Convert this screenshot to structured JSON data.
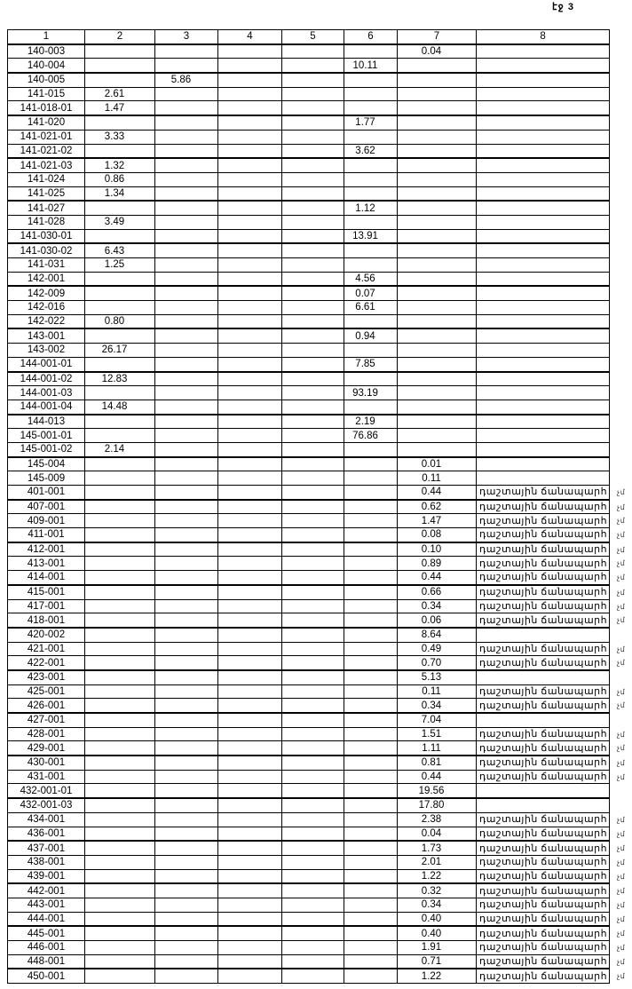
{
  "page_label": "էջ 3",
  "table": {
    "headers": [
      "1",
      "2",
      "3",
      "4",
      "5",
      "6",
      "7",
      "8"
    ],
    "road_label": "դաշտային ճանապարհ",
    "side_mark": "չմ",
    "rows": [
      [
        "140-003",
        "",
        "",
        "",
        "",
        "",
        "0.04",
        ""
      ],
      [
        "140-004",
        "",
        "",
        "",
        "",
        "10.11",
        "",
        ""
      ],
      [
        "140-005",
        "",
        "5.86",
        "",
        "",
        "",
        "",
        ""
      ],
      [
        "141-015",
        "2.61",
        "",
        "",
        "",
        "",
        "",
        ""
      ],
      [
        "141-018-01",
        "1.47",
        "",
        "",
        "",
        "",
        "",
        ""
      ],
      [
        "141-020",
        "",
        "",
        "",
        "",
        "1.77",
        "",
        ""
      ],
      [
        "141-021-01",
        "3.33",
        "",
        "",
        "",
        "",
        "",
        ""
      ],
      [
        "141-021-02",
        "",
        "",
        "",
        "",
        "3.62",
        "",
        ""
      ],
      [
        "141-021-03",
        "1.32",
        "",
        "",
        "",
        "",
        "",
        ""
      ],
      [
        "141-024",
        "0.86",
        "",
        "",
        "",
        "",
        "",
        ""
      ],
      [
        "141-025",
        "1.34",
        "",
        "",
        "",
        "",
        "",
        ""
      ],
      [
        "141-027",
        "",
        "",
        "",
        "",
        "1.12",
        "",
        ""
      ],
      [
        "141-028",
        "3.49",
        "",
        "",
        "",
        "",
        "",
        ""
      ],
      [
        "141-030-01",
        "",
        "",
        "",
        "",
        "13.91",
        "",
        ""
      ],
      [
        "141-030-02",
        "6.43",
        "",
        "",
        "",
        "",
        "",
        ""
      ],
      [
        "141-031",
        "1.25",
        "",
        "",
        "",
        "",
        "",
        ""
      ],
      [
        "142-001",
        "",
        "",
        "",
        "",
        "4.56",
        "",
        ""
      ],
      [
        "142-009",
        "",
        "",
        "",
        "",
        "0.07",
        "",
        ""
      ],
      [
        "142-016",
        "",
        "",
        "",
        "",
        "6.61",
        "",
        ""
      ],
      [
        "142-022",
        "0.80",
        "",
        "",
        "",
        "",
        "",
        ""
      ],
      [
        "143-001",
        "",
        "",
        "",
        "",
        "0.94",
        "",
        ""
      ],
      [
        "143-002",
        "26.17",
        "",
        "",
        "",
        "",
        "",
        ""
      ],
      [
        "144-001-01",
        "",
        "",
        "",
        "",
        "7.85",
        "",
        ""
      ],
      [
        "144-001-02",
        "12.83",
        "",
        "",
        "",
        "",
        "",
        ""
      ],
      [
        "144-001-03",
        "",
        "",
        "",
        "",
        "93.19",
        "",
        ""
      ],
      [
        "144-001-04",
        "14.48",
        "",
        "",
        "",
        "",
        "",
        ""
      ],
      [
        "144-013",
        "",
        "",
        "",
        "",
        "2.19",
        "",
        ""
      ],
      [
        "145-001-01",
        "",
        "",
        "",
        "",
        "76.86",
        "",
        ""
      ],
      [
        "145-001-02",
        "2.14",
        "",
        "",
        "",
        "",
        "",
        ""
      ],
      [
        "145-004",
        "",
        "",
        "",
        "",
        "",
        "0.01",
        ""
      ],
      [
        "145-009",
        "",
        "",
        "",
        "",
        "",
        "0.11",
        ""
      ],
      [
        "401-001",
        "",
        "",
        "",
        "",
        "",
        "0.44",
        "դաշտային ճանապարհ"
      ],
      [
        "407-001",
        "",
        "",
        "",
        "",
        "",
        "0.62",
        "դաշտային ճանապարհ"
      ],
      [
        "409-001",
        "",
        "",
        "",
        "",
        "",
        "1.47",
        "դաշտային ճանապարհ"
      ],
      [
        "411-001",
        "",
        "",
        "",
        "",
        "",
        "0.08",
        "դաշտային ճանապարհ"
      ],
      [
        "412-001",
        "",
        "",
        "",
        "",
        "",
        "0.10",
        "դաշտային ճանապարհ"
      ],
      [
        "413-001",
        "",
        "",
        "",
        "",
        "",
        "0.89",
        "դաշտային ճանապարհ"
      ],
      [
        "414-001",
        "",
        "",
        "",
        "",
        "",
        "0.44",
        "դաշտային ճանապարհ"
      ],
      [
        "415-001",
        "",
        "",
        "",
        "",
        "",
        "0.66",
        "դաշտային ճանապարհ"
      ],
      [
        "417-001",
        "",
        "",
        "",
        "",
        "",
        "0.34",
        "դաշտային ճանապարհ"
      ],
      [
        "418-001",
        "",
        "",
        "",
        "",
        "",
        "0.06",
        "դաշտային ճանապարհ"
      ],
      [
        "420-002",
        "",
        "",
        "",
        "",
        "",
        "8.64",
        ""
      ],
      [
        "421-001",
        "",
        "",
        "",
        "",
        "",
        "0.49",
        "դաշտային ճանապարհ"
      ],
      [
        "422-001",
        "",
        "",
        "",
        "",
        "",
        "0.70",
        "դաշտային ճանապարհ"
      ],
      [
        "423-001",
        "",
        "",
        "",
        "",
        "",
        "5.13",
        ""
      ],
      [
        "425-001",
        "",
        "",
        "",
        "",
        "",
        "0.11",
        "դաշտային ճանապարհ"
      ],
      [
        "426-001",
        "",
        "",
        "",
        "",
        "",
        "0.34",
        "դաշտային ճանապարհ"
      ],
      [
        "427-001",
        "",
        "",
        "",
        "",
        "",
        "7.04",
        ""
      ],
      [
        "428-001",
        "",
        "",
        "",
        "",
        "",
        "1.51",
        "դաշտային ճանապարհ"
      ],
      [
        "429-001",
        "",
        "",
        "",
        "",
        "",
        "1.11",
        "դաշտային ճանապարհ"
      ],
      [
        "430-001",
        "",
        "",
        "",
        "",
        "",
        "0.81",
        "դաշտային ճանապարհ"
      ],
      [
        "431-001",
        "",
        "",
        "",
        "",
        "",
        "0.44",
        "դաշտային ճանապարհ"
      ],
      [
        "432-001-01",
        "",
        "",
        "",
        "",
        "",
        "19.56",
        ""
      ],
      [
        "432-001-03",
        "",
        "",
        "",
        "",
        "",
        "17.80",
        ""
      ],
      [
        "434-001",
        "",
        "",
        "",
        "",
        "",
        "2.38",
        "դաշտային ճանապարհ"
      ],
      [
        "436-001",
        "",
        "",
        "",
        "",
        "",
        "0.04",
        "դաշտային ճանապարհ"
      ],
      [
        "437-001",
        "",
        "",
        "",
        "",
        "",
        "1.73",
        "դաշտային ճանապարհ"
      ],
      [
        "438-001",
        "",
        "",
        "",
        "",
        "",
        "2.01",
        "դաշտային ճանապարհ"
      ],
      [
        "439-001",
        "",
        "",
        "",
        "",
        "",
        "1.22",
        "դաշտային ճանապարհ"
      ],
      [
        "442-001",
        "",
        "",
        "",
        "",
        "",
        "0.32",
        "դաշտային ճանապարհ"
      ],
      [
        "443-001",
        "",
        "",
        "",
        "",
        "",
        "0.34",
        "դաշտային ճանապարհ"
      ],
      [
        "444-001",
        "",
        "",
        "",
        "",
        "",
        "0.40",
        "դաշտային ճանապարհ"
      ],
      [
        "445-001",
        "",
        "",
        "",
        "",
        "",
        "0.40",
        "դաշտային ճանապարհ"
      ],
      [
        "446-001",
        "",
        "",
        "",
        "",
        "",
        "1.91",
        "դաշտային ճանապարհ"
      ],
      [
        "448-001",
        "",
        "",
        "",
        "",
        "",
        "0.71",
        "դաշտային ճանապարհ"
      ],
      [
        "450-001",
        "",
        "",
        "",
        "",
        "",
        "1.22",
        "դաշտային ճանապարհ"
      ]
    ]
  }
}
